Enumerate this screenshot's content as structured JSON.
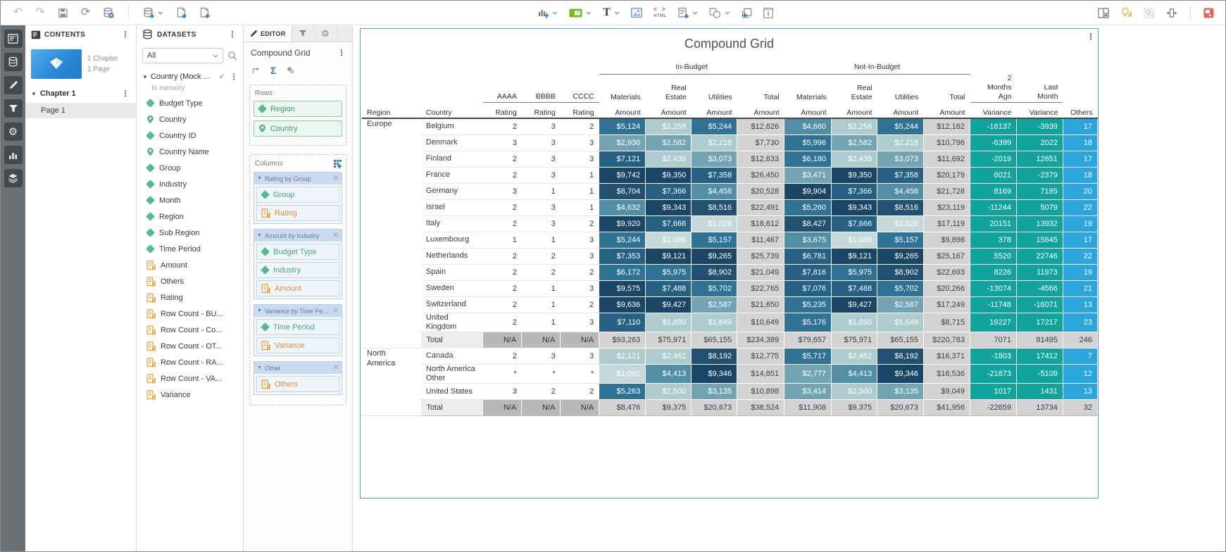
{
  "toolbar": {
    "text_label": "T",
    "html_label": "HTML",
    "left": [
      {
        "n": "undo"
      },
      {
        "n": "redo"
      },
      {
        "n": "save"
      },
      {
        "n": "refresh"
      },
      {
        "n": "database-status"
      },
      {
        "n": "divider"
      },
      {
        "n": "add-data",
        "caret": true
      },
      {
        "n": "new-page-template"
      },
      {
        "n": "add-page"
      }
    ],
    "center": [
      {
        "n": "insert-visualization",
        "caret": true
      },
      {
        "n": "insert-selector",
        "caret": true
      },
      {
        "n": "insert-text",
        "caret": true
      },
      {
        "n": "insert-image"
      },
      {
        "n": "insert-html"
      },
      {
        "n": "insert-form",
        "caret": true
      },
      {
        "n": "insert-shape",
        "caret": true
      },
      {
        "n": "insert-panel"
      },
      {
        "n": "insert-info"
      }
    ],
    "right": [
      {
        "n": "page-layout"
      },
      {
        "n": "insights"
      },
      {
        "n": "group-objects"
      },
      {
        "n": "fit-to-window"
      },
      {
        "n": "divider"
      },
      {
        "n": "present"
      }
    ]
  },
  "sidebar": {
    "items": [
      "contents",
      "datasets",
      "format",
      "filter",
      "settings",
      "visualizations",
      "layers"
    ]
  },
  "contents": {
    "title": "CONTENTS",
    "chapter_count": "1 Chapter",
    "page_count": "1 Page",
    "chapter": "Chapter 1",
    "page": "Page 1"
  },
  "datasets": {
    "title": "DATASETS",
    "filter_label": "All",
    "dataset_name": "Country (Mock ...",
    "dataset_status": "In memory",
    "fields": [
      {
        "name": "Budget Type",
        "type": "attribute"
      },
      {
        "name": "Country",
        "type": "geo"
      },
      {
        "name": "Country ID",
        "type": "attribute"
      },
      {
        "name": "Country Name",
        "type": "geo"
      },
      {
        "name": "Group",
        "type": "attribute"
      },
      {
        "name": "Industry",
        "type": "attribute"
      },
      {
        "name": "Month",
        "type": "attribute"
      },
      {
        "name": "Region",
        "type": "attribute"
      },
      {
        "name": "Sub Region",
        "type": "attribute"
      },
      {
        "name": "Time Period",
        "type": "attribute"
      },
      {
        "name": "Amount",
        "type": "metric"
      },
      {
        "name": "Others",
        "type": "metric"
      },
      {
        "name": "Rating",
        "type": "metric"
      },
      {
        "name": "Row Count - BU...",
        "type": "metric"
      },
      {
        "name": "Row Count - Co...",
        "type": "metric"
      },
      {
        "name": "Row Count - OT...",
        "type": "metric"
      },
      {
        "name": "Row Count - RA...",
        "type": "metric"
      },
      {
        "name": "Row Count - VA...",
        "type": "metric"
      },
      {
        "name": "Variance",
        "type": "metric"
      }
    ]
  },
  "editor": {
    "tab_label": "EDITOR",
    "title": "Compound Grid",
    "rows_label": "Rows",
    "columns_label": "Columns",
    "rows": [
      {
        "label": "Region",
        "type": "attribute"
      },
      {
        "label": "Country",
        "type": "geo"
      }
    ],
    "column_groups": [
      {
        "label": "Rating by Group",
        "items": [
          {
            "label": "Group",
            "type": "attribute"
          },
          {
            "label": "Rating",
            "type": "metric"
          }
        ]
      },
      {
        "label": "Amount by Industry",
        "items": [
          {
            "label": "Budget Type",
            "type": "attribute"
          },
          {
            "label": "Industry",
            "type": "attribute"
          },
          {
            "label": "Amount",
            "type": "metric"
          }
        ]
      },
      {
        "label": "Variance by Time Peri...",
        "items": [
          {
            "label": "Time Period",
            "type": "attribute"
          },
          {
            "label": "Variance",
            "type": "metric"
          }
        ]
      },
      {
        "label": "Other",
        "items": [
          {
            "label": "Others",
            "type": "metric"
          }
        ]
      }
    ]
  },
  "grid": {
    "title": "Compound Grid",
    "spanners": [
      "In-Budget",
      "Not-In-Budget"
    ],
    "col_headers": [
      {
        "t": "AAAA",
        "u": true
      },
      {
        "t": "BBBB",
        "u": true
      },
      {
        "t": "CCCC",
        "u": true
      },
      {
        "t": "Materials"
      },
      {
        "t": "Real\nEstate"
      },
      {
        "t": "Utilities"
      },
      {
        "t": "Total"
      },
      {
        "t": "Materials"
      },
      {
        "t": "Real\nEstate"
      },
      {
        "t": "Utilities"
      },
      {
        "t": "Total"
      },
      {
        "t": "2\nMonths\nAgo",
        "u": true
      },
      {
        "t": "Last\nMonth",
        "u": true
      }
    ],
    "sub_headers": [
      "Region",
      "Country",
      "Rating",
      "Rating",
      "Rating",
      "Amount",
      "Amount",
      "Amount",
      "Amount",
      "Amount",
      "Amount",
      "Amount",
      "Amount",
      "Variance",
      "Variance",
      "Others"
    ],
    "rows": [
      {
        "region": "Europe",
        "region_rowspan": 14,
        "country": "Belgium",
        "cells": [
          "2",
          "3",
          "2",
          "$5,124",
          "$2,258",
          "$5,244",
          "$12,626",
          "$4,660",
          "$2,258",
          "$5,244",
          "$12,162",
          "-16137",
          "-3939",
          "17"
        ]
      },
      {
        "country": "Denmark",
        "cells": [
          "3",
          "3",
          "3",
          "$2,930",
          "$2,582",
          "$2,218",
          "$7,730",
          "$5,996",
          "$2,582",
          "$2,218",
          "$10,796",
          "-6399",
          "2022",
          "18"
        ]
      },
      {
        "country": "Finland",
        "cells": [
          "2",
          "3",
          "3",
          "$7,121",
          "$2,439",
          "$3,073",
          "$12,633",
          "$6,180",
          "$2,439",
          "$3,073",
          "$11,692",
          "-2019",
          "12651",
          "17"
        ]
      },
      {
        "country": "France",
        "cells": [
          "2",
          "3",
          "1",
          "$9,742",
          "$9,350",
          "$7,358",
          "$26,450",
          "$3,471",
          "$9,350",
          "$7,358",
          "$20,179",
          "6021",
          "-2379",
          "18"
        ]
      },
      {
        "country": "Germany",
        "cells": [
          "3",
          "1",
          "1",
          "$8,704",
          "$7,366",
          "$4,458",
          "$20,528",
          "$9,904",
          "$7,366",
          "$4,458",
          "$21,728",
          "8169",
          "7185",
          "20"
        ]
      },
      {
        "country": "Israel",
        "cells": [
          "2",
          "3",
          "1",
          "$4,632",
          "$9,343",
          "$8,516",
          "$22,491",
          "$5,260",
          "$9,343",
          "$8,516",
          "$23,119",
          "-11244",
          "5079",
          "22"
        ]
      },
      {
        "country": "Italy",
        "cells": [
          "2",
          "3",
          "2",
          "$9,920",
          "$7,666",
          "$1,026",
          "$18,612",
          "$8,427",
          "$7,666",
          "$1,026",
          "$17,119",
          "20151",
          "13932",
          "19"
        ]
      },
      {
        "country": "Luxembourg",
        "cells": [
          "1",
          "1",
          "3",
          "$5,244",
          "$1,066",
          "$5,157",
          "$11,467",
          "$3,675",
          "$1,066",
          "$5,157",
          "$9,898",
          "378",
          "15645",
          "17"
        ]
      },
      {
        "country": "Netherlands",
        "cells": [
          "2",
          "2",
          "3",
          "$7,353",
          "$9,121",
          "$9,265",
          "$25,739",
          "$6,781",
          "$9,121",
          "$9,265",
          "$25,167",
          "5520",
          "22746",
          "22"
        ]
      },
      {
        "country": "Spain",
        "cells": [
          "2",
          "2",
          "2",
          "$6,172",
          "$5,975",
          "$8,902",
          "$21,049",
          "$7,816",
          "$5,975",
          "$8,902",
          "$22,693",
          "8226",
          "11973",
          "19"
        ]
      },
      {
        "country": "Sweden",
        "cells": [
          "2",
          "1",
          "3",
          "$9,575",
          "$7,488",
          "$5,702",
          "$22,765",
          "$7,076",
          "$7,488",
          "$5,702",
          "$20,266",
          "-13074",
          "-4566",
          "21"
        ]
      },
      {
        "country": "Switzerland",
        "cells": [
          "2",
          "1",
          "2",
          "$9,636",
          "$9,427",
          "$2,587",
          "$21,650",
          "$5,235",
          "$9,427",
          "$2,587",
          "$17,249",
          "-11748",
          "-16071",
          "13"
        ]
      },
      {
        "country": "United Kingdom",
        "cells": [
          "2",
          "1",
          "3",
          "$7,110",
          "$1,890",
          "$1,649",
          "$10,649",
          "$5,176",
          "$1,890",
          "$1,649",
          "$8,715",
          "19227",
          "17217",
          "23"
        ]
      },
      {
        "country": "Total",
        "total": true,
        "cells": [
          "N/A",
          "N/A",
          "N/A",
          "$93,263",
          "$75,971",
          "$65,155",
          "$234,389",
          "$79,657",
          "$75,971",
          "$65,155",
          "$220,783",
          "7071",
          "81495",
          "246"
        ]
      },
      {
        "region": "North America",
        "region_rowspan": 4,
        "country": "Canada",
        "cells": [
          "2",
          "3",
          "3",
          "$2,121",
          "$2,462",
          "$8,192",
          "$12,775",
          "$5,717",
          "$2,462",
          "$8,192",
          "$16,371",
          "-1803",
          "17412",
          "7"
        ]
      },
      {
        "country": "North America Other",
        "cells": [
          "*",
          "*",
          "*",
          "$1,092",
          "$4,413",
          "$9,346",
          "$14,851",
          "$2,777",
          "$4,413",
          "$9,346",
          "$16,536",
          "-21873",
          "-5109",
          "12"
        ]
      },
      {
        "country": "United States",
        "cells": [
          "3",
          "2",
          "2",
          "$5,263",
          "$2,500",
          "$3,135",
          "$10,898",
          "$3,414",
          "$2,500",
          "$3,135",
          "$9,049",
          "1017",
          "1431",
          "13"
        ]
      },
      {
        "country": "Total",
        "total": true,
        "cells": [
          "N/A",
          "N/A",
          "N/A",
          "$8,476",
          "$9,375",
          "$20,673",
          "$38,524",
          "$11,908",
          "$9,375",
          "$20,673",
          "$41,956",
          "-22659",
          "13734",
          "32"
        ]
      }
    ]
  },
  "colors": {
    "heatmap_dark": "#1b4566",
    "heatmap_light": "#c6d9da",
    "variance_teal": "#12a39e",
    "others_blue": "#2ca5dc",
    "total_gray": "#d3d3d3",
    "na_gray": "#b8b8b8",
    "accent_blue": "#2f80d8",
    "selection_border": "#5598dd"
  }
}
